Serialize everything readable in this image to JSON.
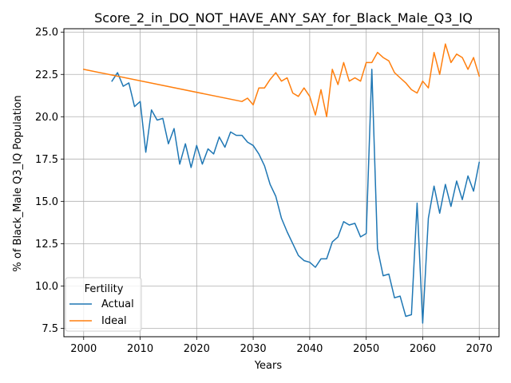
{
  "chart_data": {
    "type": "line",
    "title": "Score_2_in_DO_NOT_HAVE_ANY_SAY_for_Black_Male_Q3_IQ",
    "xlabel": "Years",
    "ylabel": "% of Black_Male Q3_IQ Population",
    "xlim": [
      1996.5,
      2073.5
    ],
    "ylim": [
      7.0,
      25.2
    ],
    "xticks": [
      2000,
      2010,
      2020,
      2030,
      2040,
      2050,
      2060,
      2070
    ],
    "xtick_labels": [
      "2000",
      "2010",
      "2020",
      "2030",
      "2040",
      "2050",
      "2060",
      "2070"
    ],
    "yticks": [
      7.5,
      10.0,
      12.5,
      15.0,
      17.5,
      20.0,
      22.5,
      25.0
    ],
    "ytick_labels": [
      "7.5",
      "10.0",
      "12.5",
      "15.0",
      "17.5",
      "20.0",
      "22.5",
      "25.0"
    ],
    "grid": true,
    "legend": {
      "title": "Fertility",
      "placement": "lower-left"
    },
    "series": [
      {
        "name": "Actual",
        "color": "#1f77b4",
        "x": [
          2005,
          2006,
          2007,
          2008,
          2009,
          2010,
          2011,
          2012,
          2013,
          2014,
          2015,
          2016,
          2017,
          2018,
          2019,
          2020,
          2021,
          2022,
          2023,
          2024,
          2025,
          2026,
          2027,
          2028,
          2029,
          2030,
          2031,
          2032,
          2033,
          2034,
          2035,
          2036,
          2037,
          2038,
          2039,
          2040,
          2041,
          2042,
          2043,
          2044,
          2045,
          2046,
          2047,
          2048,
          2049,
          2050,
          2051,
          2052,
          2053,
          2054,
          2055,
          2056,
          2057,
          2058,
          2059,
          2060,
          2061,
          2062,
          2063,
          2064,
          2065,
          2066,
          2067,
          2068,
          2069,
          2070
        ],
        "values": [
          22.1,
          22.6,
          21.8,
          22.0,
          20.6,
          20.9,
          17.9,
          20.4,
          19.8,
          19.9,
          18.4,
          19.3,
          17.2,
          18.4,
          17.0,
          18.3,
          17.2,
          18.1,
          17.8,
          18.8,
          18.2,
          19.1,
          18.9,
          18.9,
          18.5,
          18.3,
          17.8,
          17.1,
          16.0,
          15.3,
          14.0,
          13.2,
          12.5,
          11.8,
          11.5,
          11.4,
          11.1,
          11.6,
          11.6,
          12.6,
          12.9,
          13.8,
          13.6,
          13.7,
          12.9,
          13.1,
          22.8,
          12.2,
          10.6,
          10.7,
          9.3,
          9.4,
          8.2,
          8.3,
          14.9,
          7.8,
          14.0,
          15.9,
          14.3,
          16.0,
          14.7,
          16.2,
          15.1,
          16.5,
          15.6,
          17.3
        ]
      },
      {
        "name": "Ideal",
        "color": "#ff7f0e",
        "x": [
          2000,
          2028,
          2029,
          2030,
          2031,
          2032,
          2033,
          2034,
          2035,
          2036,
          2037,
          2038,
          2039,
          2040,
          2041,
          2042,
          2043,
          2044,
          2045,
          2046,
          2047,
          2048,
          2049,
          2050,
          2051,
          2052,
          2053,
          2054,
          2055,
          2056,
          2057,
          2058,
          2059,
          2060,
          2061,
          2062,
          2063,
          2064,
          2065,
          2066,
          2067,
          2068,
          2069,
          2070
        ],
        "values": [
          22.8,
          20.9,
          21.1,
          20.7,
          21.7,
          21.7,
          22.2,
          22.6,
          22.1,
          22.3,
          21.4,
          21.2,
          21.7,
          21.2,
          20.1,
          21.6,
          20.0,
          22.8,
          21.9,
          23.2,
          22.1,
          22.3,
          22.1,
          23.2,
          23.2,
          23.8,
          23.5,
          23.3,
          22.6,
          22.3,
          22.0,
          21.6,
          21.4,
          22.1,
          21.7,
          23.8,
          22.5,
          24.3,
          23.2,
          23.7,
          23.5,
          22.8,
          23.5,
          22.4
        ]
      }
    ]
  }
}
